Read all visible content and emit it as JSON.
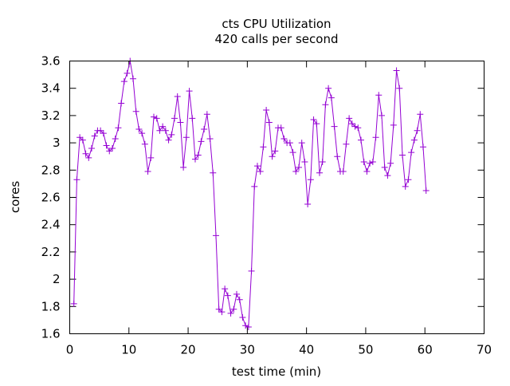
{
  "chart_data": {
    "type": "line",
    "title": "cts CPU Utilization",
    "subtitle": "420 calls per second",
    "xlabel": "test time (min)",
    "ylabel": "cores",
    "xlim": [
      0,
      70
    ],
    "ylim": [
      1.6,
      3.6
    ],
    "xticks": [
      "0",
      "10",
      "20",
      "30",
      "40",
      "50",
      "60",
      "70"
    ],
    "yticks": [
      "1.6",
      "1.8",
      "2",
      "2.2",
      "2.4",
      "2.6",
      "2.8",
      "3",
      "3.2",
      "3.4",
      "3.6"
    ],
    "grid": false,
    "legend": "none",
    "series": [
      {
        "name": "cores",
        "color": "#9400d3",
        "marker": "plus",
        "x_start": 0.7,
        "x_step": 0.5,
        "values": [
          1.82,
          2.73,
          3.04,
          3.02,
          2.92,
          2.89,
          2.96,
          3.05,
          3.09,
          3.09,
          3.07,
          2.98,
          2.94,
          2.96,
          3.03,
          3.11,
          3.29,
          3.45,
          3.51,
          3.6,
          3.47,
          3.23,
          3.1,
          3.07,
          2.99,
          2.79,
          2.89,
          3.19,
          3.18,
          3.09,
          3.12,
          3.09,
          3.02,
          3.06,
          3.18,
          3.34,
          3.15,
          2.82,
          3.04,
          3.38,
          3.18,
          2.88,
          2.91,
          3.01,
          3.1,
          3.21,
          3.03,
          2.78,
          2.32,
          1.78,
          1.76,
          1.93,
          1.88,
          1.75,
          1.78,
          1.89,
          1.85,
          1.72,
          1.66,
          1.65,
          2.06,
          2.68,
          2.83,
          2.79,
          2.97,
          3.24,
          3.15,
          2.9,
          2.94,
          3.11,
          3.11,
          3.03,
          3.0,
          3.0,
          2.93,
          2.79,
          2.82,
          3.0,
          2.86,
          2.55,
          2.73,
          3.17,
          3.14,
          2.78,
          2.86,
          3.28,
          3.4,
          3.33,
          3.12,
          2.9,
          2.79,
          2.79,
          2.99,
          3.18,
          3.14,
          3.12,
          3.11,
          3.02,
          2.86,
          2.79,
          2.85,
          2.86,
          3.04,
          3.35,
          3.2,
          2.82,
          2.76,
          2.85,
          3.13,
          3.53,
          3.4,
          2.91,
          2.68,
          2.73,
          2.93,
          3.02,
          3.09,
          3.21,
          2.97,
          2.65
        ]
      }
    ]
  }
}
